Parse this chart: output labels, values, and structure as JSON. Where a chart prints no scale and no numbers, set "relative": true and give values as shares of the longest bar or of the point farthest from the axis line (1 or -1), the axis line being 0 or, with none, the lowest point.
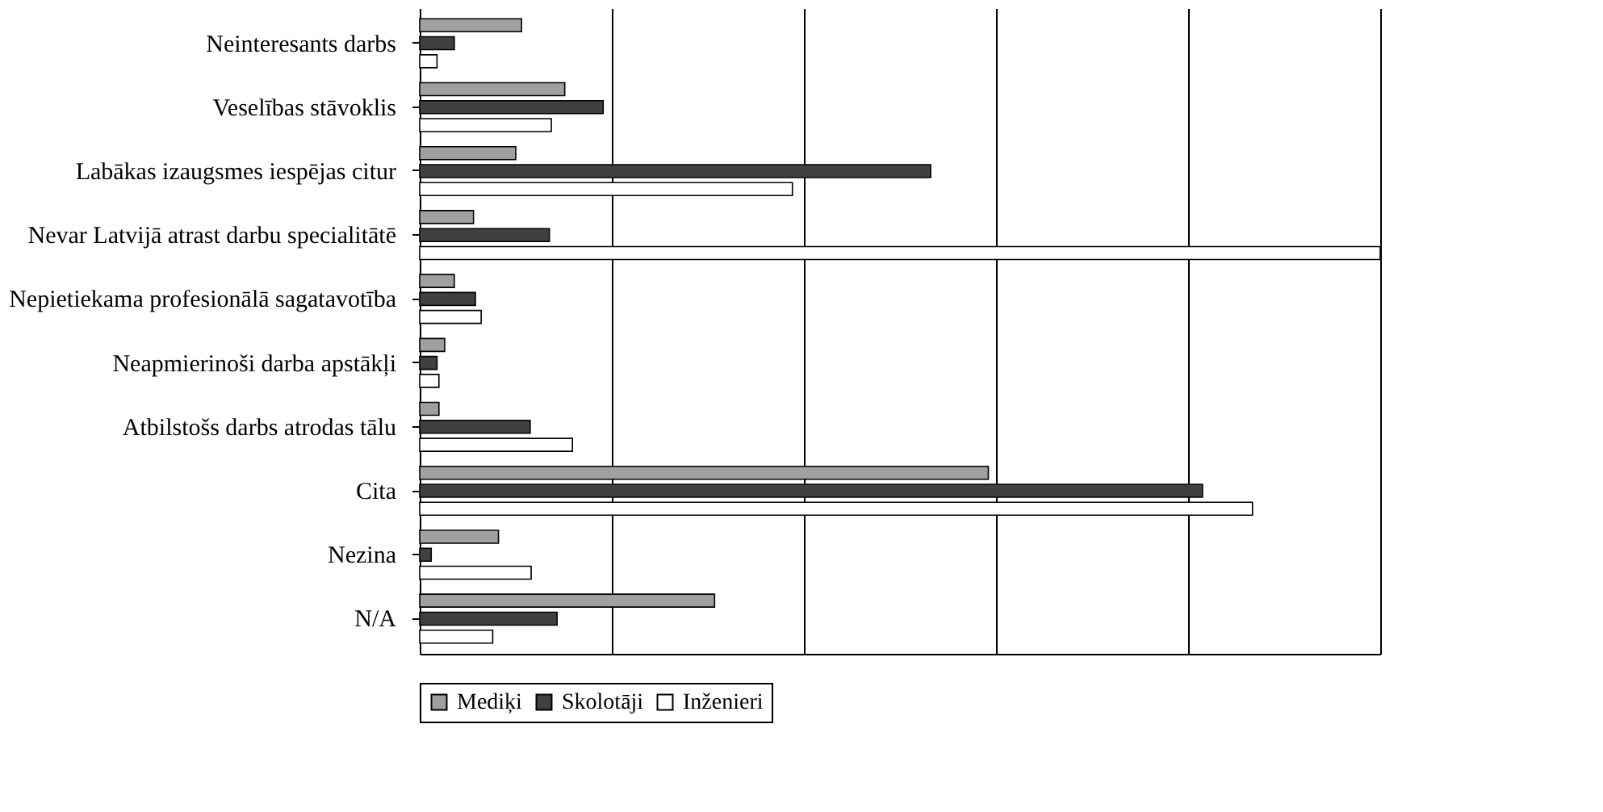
{
  "chart_data": {
    "type": "bar",
    "orientation": "horizontal",
    "relative": true,
    "grid": "x",
    "legend": "bottom",
    "categories": [
      "Neinteresants darbs",
      "Veselības stāvoklis",
      "Labākas izaugsmes iespējas citur",
      "Nevar Latvijā atrast darbu specialitātē",
      "Nepietiekama profesionālā sagatavotība",
      "Neapmierinoši darba apstākļi",
      "Atbilstošs darbs atrodas tālu",
      "Cita",
      "Nezina",
      "N/A"
    ],
    "series": [
      {
        "name": "Mediķi",
        "color": "#a0a0a0",
        "values": [
          0.106,
          0.151,
          0.1,
          0.056,
          0.036,
          0.026,
          0.02,
          0.592,
          0.082,
          0.307
        ]
      },
      {
        "name": "Skolotāji",
        "color": "#404040",
        "values": [
          0.036,
          0.191,
          0.532,
          0.135,
          0.058,
          0.018,
          0.115,
          0.815,
          0.012,
          0.143
        ]
      },
      {
        "name": "Inženieri",
        "color": "#ffffff",
        "values": [
          0.018,
          0.137,
          0.388,
          1,
          0.064,
          0.02,
          0.159,
          0.867,
          0.116,
          0.076
        ]
      }
    ]
  }
}
